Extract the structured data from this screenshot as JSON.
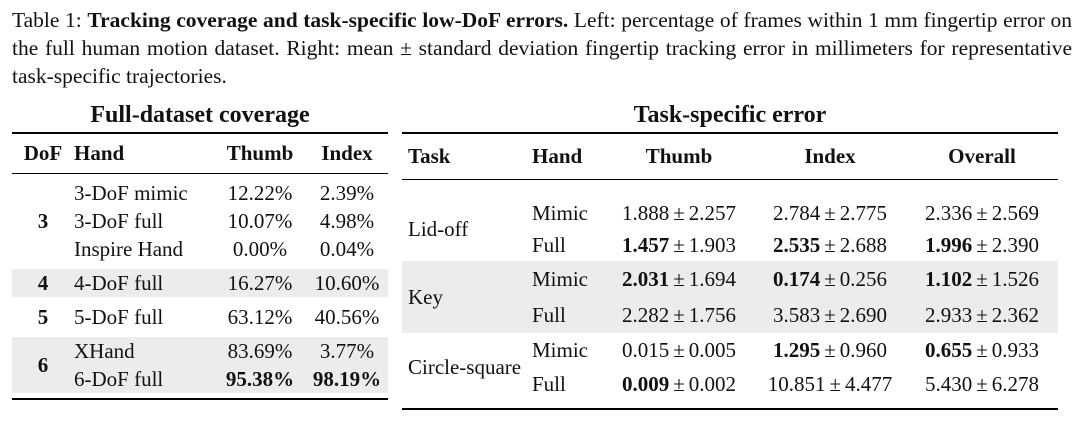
{
  "caption": {
    "label": "Table 1:",
    "title": "Tracking coverage and task-specific low-DoF errors.",
    "text": "Left: percentage of frames within 1 mm fingertip error on the full human motion dataset. Right: mean ± standard deviation fingertip tracking error in millimeters for representative task-specific trajectories."
  },
  "left": {
    "title": "Full-dataset coverage",
    "headers": [
      "DoF",
      "Hand",
      "Thumb",
      "Index"
    ],
    "groups": [
      {
        "dof": "3",
        "rows": [
          {
            "hand": "3-DoF mimic",
            "thumb": "12.22%",
            "index": "2.39%"
          },
          {
            "hand": "3-DoF full",
            "thumb": "10.07%",
            "index": "4.98%"
          },
          {
            "hand": "Inspire Hand",
            "thumb": "0.00%",
            "index": "0.04%"
          }
        ]
      },
      {
        "dof": "4",
        "rows": [
          {
            "hand": "4-DoF full",
            "thumb": "16.27%",
            "index": "10.60%"
          }
        ]
      },
      {
        "dof": "5",
        "rows": [
          {
            "hand": "5-DoF full",
            "thumb": "63.12%",
            "index": "40.56%"
          }
        ]
      },
      {
        "dof": "6",
        "rows": [
          {
            "hand": "XHand",
            "thumb": "83.69%",
            "index": "3.77%"
          },
          {
            "hand": "6-DoF full",
            "thumb": "95.38%",
            "index": "98.19%"
          }
        ]
      }
    ]
  },
  "right": {
    "title": "Task-specific error",
    "headers": [
      "Task",
      "Hand",
      "Thumb",
      "Index",
      "Overall"
    ],
    "pm": "±",
    "tasks": [
      {
        "task": "Lid-off",
        "rows": [
          {
            "hand": "Mimic",
            "thumb_mean": "1.888",
            "thumb_sd": "2.257",
            "index_mean": "2.784",
            "index_sd": "2.775",
            "overall_mean": "2.336",
            "overall_sd": "2.569"
          },
          {
            "hand": "Full",
            "thumb_mean": "1.457",
            "thumb_sd": "1.903",
            "index_mean": "2.535",
            "index_sd": "2.688",
            "overall_mean": "1.996",
            "overall_sd": "2.390"
          }
        ]
      },
      {
        "task": "Key",
        "rows": [
          {
            "hand": "Mimic",
            "thumb_mean": "2.031",
            "thumb_sd": "1.694",
            "index_mean": "0.174",
            "index_sd": "0.256",
            "overall_mean": "1.102",
            "overall_sd": "1.526"
          },
          {
            "hand": "Full",
            "thumb_mean": "2.282",
            "thumb_sd": "1.756",
            "index_mean": "3.583",
            "index_sd": "2.690",
            "overall_mean": "2.933",
            "overall_sd": "2.362"
          }
        ]
      },
      {
        "task": "Circle-square",
        "rows": [
          {
            "hand": "Mimic",
            "thumb_mean": "0.015",
            "thumb_sd": "0.005",
            "index_mean": "1.295",
            "index_sd": "0.960",
            "overall_mean": "0.655",
            "overall_sd": "0.933"
          },
          {
            "hand": "Full",
            "thumb_mean": "0.009",
            "thumb_sd": "0.002",
            "index_mean": "10.851",
            "index_sd": "4.477",
            "overall_mean": "5.430",
            "overall_sd": "6.278"
          }
        ]
      }
    ]
  }
}
